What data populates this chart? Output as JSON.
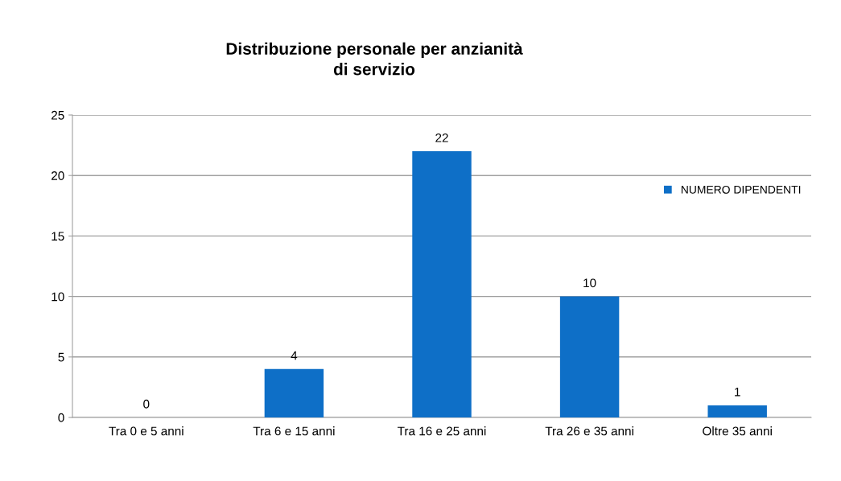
{
  "chart_data": {
    "type": "bar",
    "title": "Distribuzione personale per anzianità\ndi servizio",
    "categories": [
      "Tra 0 e 5 anni",
      "Tra 6 e 15 anni",
      "Tra 16 e 25 anni",
      "Tra 26 e 35 anni",
      "Oltre 35 anni"
    ],
    "series": [
      {
        "name": "NUMERO DIPENDENTI",
        "color": "#0e6fc7",
        "values": [
          0,
          4,
          22,
          10,
          1
        ]
      }
    ],
    "ylim": [
      0,
      25
    ],
    "yticks": [
      0,
      5,
      10,
      15,
      20,
      25
    ],
    "grid": "y",
    "legend": "right",
    "data_labels": true
  }
}
